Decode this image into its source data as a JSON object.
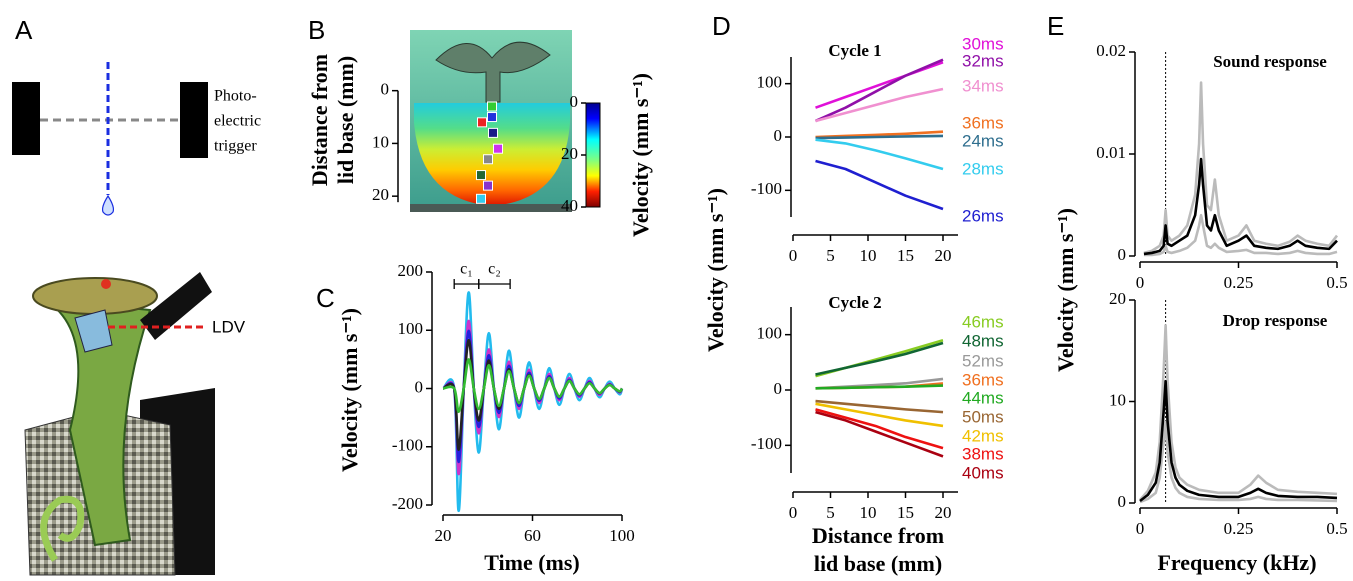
{
  "panel_labels": [
    "A",
    "B",
    "C",
    "D",
    "E"
  ],
  "diagram": {
    "trigger_label": [
      "Photo-",
      "electric",
      "trigger"
    ],
    "ldv_label": "LDV"
  },
  "chart_data": [
    {
      "type": "colormap",
      "y_label": [
        "Distance from",
        "lid base (mm)"
      ],
      "ylim": [
        -11.5,
        23
      ],
      "yticks": [
        0,
        10,
        20
      ],
      "markers": {
        "distance": [
          3,
          5,
          6,
          8,
          11,
          13,
          16,
          18,
          20.5
        ],
        "colors": [
          "#33cc33",
          "#2233dd",
          "#ee2222",
          "#1a1a88",
          "#cc33ee",
          "#888888",
          "#226633",
          "#8833cc",
          "#33ccee"
        ]
      },
      "colorbar": {
        "label": "Velocity (mm s⁻¹)",
        "lim": [
          0,
          40
        ],
        "ticks": [
          0,
          20,
          40
        ]
      }
    },
    {
      "type": "line",
      "y_label": "Velocity (mm s⁻¹)",
      "x_label": "Time (ms)",
      "xlim": [
        20,
        100
      ],
      "xticks": [
        20,
        60,
        100
      ],
      "ylim": [
        -200,
        200
      ],
      "yticks": [
        -200,
        -100,
        0,
        100,
        200
      ],
      "brackets": [
        {
          "label": "c₁",
          "start": 25,
          "end": 36
        },
        {
          "label": "c₂",
          "start": 36,
          "end": 50
        }
      ],
      "x": [
        20,
        25,
        27,
        29.25,
        31.5,
        33.75,
        36,
        38.25,
        40.5,
        42.75,
        45,
        47.25,
        49.5,
        51.75,
        54,
        56.25,
        58.5,
        60.75,
        63,
        65.25,
        67.5,
        69.75,
        72,
        74.25,
        76.5,
        78.75,
        81,
        83.25,
        85.5,
        87.75,
        90,
        92.25,
        94.5,
        96.75,
        99,
        100
      ],
      "series": [
        {
          "color": "#22bbee",
          "values": [
            0,
            0,
            -210,
            0,
            165,
            0,
            -110,
            0,
            95,
            0,
            -70,
            0,
            65,
            0,
            -50,
            0,
            45,
            0,
            -35,
            0,
            35,
            0,
            -28,
            0,
            25,
            0,
            -20,
            0,
            18,
            0,
            -15,
            0,
            12,
            0,
            -10,
            0
          ]
        },
        {
          "color": "#cc33cc",
          "values": [
            0,
            0,
            -147,
            0,
            116,
            0,
            -77,
            0,
            67,
            0,
            -49,
            0,
            46,
            0,
            -35,
            0,
            32,
            0,
            -25,
            0,
            25,
            0,
            -20,
            0,
            18,
            0,
            -14,
            0,
            13,
            0,
            -11,
            0,
            8,
            0,
            -7,
            0
          ]
        },
        {
          "color": "#2222dd",
          "values": [
            0,
            0,
            -126,
            0,
            99,
            0,
            -66,
            0,
            57,
            0,
            -42,
            0,
            39,
            0,
            -30,
            0,
            27,
            0,
            -21,
            0,
            21,
            0,
            -17,
            0,
            15,
            0,
            -12,
            0,
            11,
            0,
            -9,
            0,
            7,
            0,
            -6,
            0
          ]
        },
        {
          "color": "#222222",
          "values": [
            0,
            0,
            -105,
            0,
            83,
            0,
            -55,
            0,
            48,
            0,
            -35,
            0,
            33,
            0,
            -25,
            0,
            23,
            0,
            -18,
            0,
            18,
            0,
            -14,
            0,
            13,
            0,
            -10,
            0,
            9,
            0,
            -8,
            0,
            6,
            0,
            -5,
            0
          ]
        },
        {
          "color": "#33bb33",
          "values": [
            0,
            0,
            -40,
            0,
            50,
            0,
            -35,
            0,
            40,
            0,
            -30,
            0,
            30,
            0,
            -25,
            0,
            22,
            0,
            -18,
            0,
            18,
            0,
            -14,
            0,
            13,
            0,
            -10,
            0,
            9,
            0,
            -8,
            0,
            6,
            0,
            -5,
            0
          ]
        }
      ]
    },
    {
      "type": "line",
      "title": "Cycle 1",
      "y_label": "Velocity (mm s⁻¹)",
      "xlim": [
        0,
        22
      ],
      "xticks": [
        0,
        5,
        10,
        15,
        20
      ],
      "ylim": [
        -150,
        150
      ],
      "yticks": [
        -100,
        0,
        100
      ],
      "x": [
        3,
        7,
        11,
        15,
        20
      ],
      "series": [
        {
          "name": "30ms",
          "color": "#e010d8",
          "values": [
            55,
            75,
            95,
            115,
            140
          ]
        },
        {
          "name": "32ms",
          "color": "#9010a8",
          "values": [
            30,
            55,
            85,
            115,
            145
          ]
        },
        {
          "name": "34ms",
          "color": "#f090d0",
          "values": [
            30,
            45,
            60,
            75,
            90
          ]
        },
        {
          "name": "36ms",
          "color": "#f07020",
          "values": [
            0,
            2,
            4,
            6,
            10
          ]
        },
        {
          "name": "24ms",
          "color": "#2e6e8e",
          "values": [
            -2,
            -1,
            0,
            1,
            2
          ]
        },
        {
          "name": "28ms",
          "color": "#33ccee",
          "values": [
            -5,
            -12,
            -25,
            -40,
            -60
          ]
        },
        {
          "name": "26ms",
          "color": "#1f1fd0",
          "values": [
            -45,
            -60,
            -85,
            -110,
            -135
          ]
        }
      ]
    },
    {
      "type": "line",
      "title": "Cycle 2",
      "x_label": [
        "Distance from",
        "lid base (mm)"
      ],
      "xlim": [
        0,
        22
      ],
      "xticks": [
        0,
        5,
        10,
        15,
        20
      ],
      "ylim": [
        -150,
        150
      ],
      "yticks": [
        -100,
        0,
        100
      ],
      "x": [
        3,
        7,
        11,
        15,
        20
      ],
      "series": [
        {
          "name": "46ms",
          "color": "#88cc22",
          "values": [
            25,
            40,
            55,
            70,
            90
          ]
        },
        {
          "name": "48ms",
          "color": "#116633",
          "values": [
            28,
            40,
            52,
            65,
            85
          ]
        },
        {
          "name": "52ms",
          "color": "#999999",
          "values": [
            3,
            6,
            9,
            12,
            20
          ]
        },
        {
          "name": "36ms",
          "color": "#f07020",
          "values": [
            3,
            4,
            5,
            6,
            12
          ]
        },
        {
          "name": "44ms",
          "color": "#22aa22",
          "values": [
            3,
            4,
            5,
            6,
            8
          ]
        },
        {
          "name": "50ms",
          "color": "#996633",
          "values": [
            -20,
            -25,
            -30,
            -35,
            -40
          ]
        },
        {
          "name": "42ms",
          "color": "#f0c000",
          "values": [
            -25,
            -35,
            -45,
            -55,
            -65
          ]
        },
        {
          "name": "38ms",
          "color": "#ee1111",
          "values": [
            -35,
            -50,
            -65,
            -85,
            -105
          ]
        },
        {
          "name": "40ms",
          "color": "#aa0011",
          "values": [
            -40,
            -55,
            -75,
            -95,
            -120
          ]
        }
      ]
    },
    {
      "type": "line",
      "title": "Sound response",
      "y_label": "Velocity (mm s⁻¹)",
      "xlim": [
        0,
        0.5
      ],
      "xticks": [
        0,
        0.25,
        0.5
      ],
      "ylim": [
        0,
        0.02
      ],
      "yticks": [
        0,
        0.01,
        0.02
      ],
      "marker_x": 0.065,
      "x": [
        0.01,
        0.03,
        0.05,
        0.06,
        0.065,
        0.07,
        0.08,
        0.1,
        0.12,
        0.14,
        0.15,
        0.155,
        0.16,
        0.17,
        0.18,
        0.19,
        0.2,
        0.22,
        0.25,
        0.27,
        0.29,
        0.32,
        0.35,
        0.38,
        0.4,
        0.42,
        0.45,
        0.48,
        0.5
      ],
      "series": [
        {
          "color": "#bbbbbb",
          "values": [
            0.0003,
            0.0005,
            0.001,
            0.002,
            0.0045,
            0.002,
            0.0015,
            0.002,
            0.003,
            0.006,
            0.011,
            0.017,
            0.011,
            0.005,
            0.0045,
            0.0075,
            0.004,
            0.0015,
            0.002,
            0.003,
            0.0015,
            0.0012,
            0.001,
            0.0014,
            0.002,
            0.0015,
            0.0012,
            0.001,
            0.002
          ]
        },
        {
          "color": "#bbbbbb",
          "values": [
            0.0001,
            0.0001,
            0.0002,
            0.0004,
            0.001,
            0.0004,
            0.0003,
            0.0005,
            0.0008,
            0.0015,
            0.003,
            0.004,
            0.003,
            0.001,
            0.0008,
            0.0012,
            0.0008,
            0.0004,
            0.0005,
            0.0006,
            0.0003,
            0.0003,
            0.0002,
            0.0003,
            0.0005,
            0.0003,
            0.0002,
            0.0002,
            0.0004
          ]
        },
        {
          "color": "#000000",
          "values": [
            0.0002,
            0.0003,
            0.0005,
            0.001,
            0.003,
            0.0012,
            0.001,
            0.0015,
            0.002,
            0.004,
            0.007,
            0.0095,
            0.007,
            0.003,
            0.0025,
            0.004,
            0.0025,
            0.001,
            0.0015,
            0.002,
            0.001,
            0.0008,
            0.0007,
            0.001,
            0.0015,
            0.001,
            0.0008,
            0.0007,
            0.0015
          ]
        }
      ]
    },
    {
      "type": "line",
      "title": "Drop response",
      "x_label": "Frequency (kHz)",
      "xlim": [
        0,
        0.5
      ],
      "xticks": [
        0,
        0.25,
        0.5
      ],
      "ylim": [
        0,
        20
      ],
      "yticks": [
        0,
        10,
        20
      ],
      "marker_x": 0.065,
      "x": [
        0,
        0.02,
        0.04,
        0.05,
        0.06,
        0.065,
        0.07,
        0.08,
        0.09,
        0.1,
        0.12,
        0.15,
        0.2,
        0.25,
        0.28,
        0.3,
        0.32,
        0.35,
        0.4,
        0.45,
        0.5
      ],
      "series": [
        {
          "color": "#bbbbbb",
          "values": [
            0.3,
            1.2,
            3,
            6,
            13,
            17.5,
            12,
            6,
            3.5,
            2.5,
            1.8,
            1.3,
            1,
            1,
            1.8,
            2.7,
            2,
            1.3,
            1.1,
            1,
            0.9
          ]
        },
        {
          "color": "#bbbbbb",
          "values": [
            0.1,
            0.4,
            1,
            2.5,
            6,
            8,
            5,
            2.5,
            1.5,
            1,
            0.6,
            0.4,
            0.3,
            0.3,
            0.4,
            0.6,
            0.4,
            0.3,
            0.3,
            0.25,
            0.2
          ]
        },
        {
          "color": "#000000",
          "values": [
            0.2,
            0.8,
            2,
            4,
            9,
            12,
            8,
            4,
            2.5,
            1.8,
            1.2,
            0.8,
            0.6,
            0.6,
            1,
            1.4,
            1,
            0.7,
            0.6,
            0.6,
            0.5
          ]
        }
      ]
    }
  ]
}
